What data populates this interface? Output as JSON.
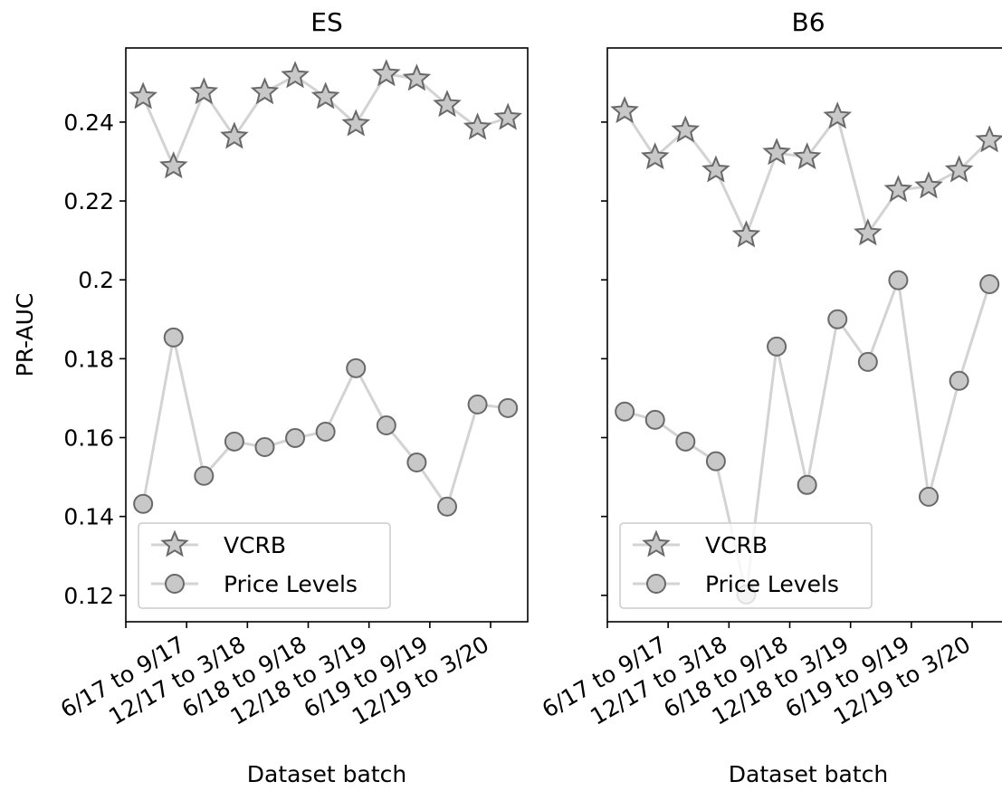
{
  "chart_data": [
    {
      "type": "line",
      "title": "ES",
      "ylabel": "PR-AUC",
      "xlabel": "Dataset batch",
      "x": [
        0,
        1,
        2,
        3,
        4,
        5,
        6,
        7,
        8,
        9,
        10,
        11,
        12
      ],
      "xlim": [
        -0.57,
        12.65
      ],
      "xticks": [
        {
          "value": -0.57,
          "label": null
        },
        {
          "value": 1.43,
          "label": "6/17 to 9/17"
        },
        {
          "value": 3.43,
          "label": "12/17 to 3/18"
        },
        {
          "value": 5.43,
          "label": "6/18 to 9/18"
        },
        {
          "value": 7.43,
          "label": "12/18 to 3/19"
        },
        {
          "value": 9.43,
          "label": "6/19 to 9/19"
        },
        {
          "value": 11.43,
          "label": "12/19 to 3/20"
        }
      ],
      "ylim": [
        0.1133,
        0.2588
      ],
      "yticks": [
        0.12,
        0.14,
        0.16,
        0.18,
        0.2,
        0.22,
        0.24
      ],
      "show_ytick_labels": true,
      "legend": "lower left",
      "series": [
        {
          "name": "VCRB",
          "marker": "star",
          "color": "#d3d3d3",
          "marker_fill": "#c8c8c8",
          "marker_edge": "#696969",
          "values": [
            0.2464,
            0.2288,
            0.2476,
            0.2363,
            0.2476,
            0.2517,
            0.2464,
            0.2395,
            0.2522,
            0.251,
            0.2444,
            0.2386,
            0.2411
          ]
        },
        {
          "name": "Price Levels",
          "marker": "circle",
          "color": "#d3d3d3",
          "marker_fill": "#c8c8c8",
          "marker_edge": "#696969",
          "values": [
            0.1432,
            0.1854,
            0.1503,
            0.159,
            0.1576,
            0.1599,
            0.1615,
            0.1776,
            0.1631,
            0.1537,
            0.1425,
            0.1684,
            0.1675
          ]
        }
      ]
    },
    {
      "type": "line",
      "title": "B6",
      "xlabel": "Dataset batch",
      "x": [
        0,
        1,
        2,
        3,
        4,
        5,
        6,
        7,
        8,
        9,
        10,
        11,
        12
      ],
      "xlim": [
        -0.57,
        12.65
      ],
      "xticks": [
        {
          "value": -0.57,
          "label": null
        },
        {
          "value": 1.43,
          "label": "6/17 to 9/17"
        },
        {
          "value": 3.43,
          "label": "12/17 to 3/18"
        },
        {
          "value": 5.43,
          "label": "6/18 to 9/18"
        },
        {
          "value": 7.43,
          "label": "12/18 to 3/19"
        },
        {
          "value": 9.43,
          "label": "6/19 to 9/19"
        },
        {
          "value": 11.43,
          "label": "12/19 to 3/20"
        }
      ],
      "ylim": [
        0.1133,
        0.2588
      ],
      "yticks": [
        0.12,
        0.14,
        0.16,
        0.18,
        0.2,
        0.22,
        0.24
      ],
      "show_ytick_labels": false,
      "legend": "lower left",
      "series": [
        {
          "name": "VCRB",
          "marker": "star",
          "color": "#d3d3d3",
          "marker_fill": "#c8c8c8",
          "marker_edge": "#696969",
          "values": [
            0.2428,
            0.2311,
            0.2379,
            0.2278,
            0.2113,
            0.2322,
            0.2311,
            0.2414,
            0.2118,
            0.2228,
            0.2237,
            0.2278,
            0.2354
          ]
        },
        {
          "name": "Price Levels",
          "marker": "circle",
          "color": "#d3d3d3",
          "marker_fill": "#c8c8c8",
          "marker_edge": "#696969",
          "values": [
            0.1666,
            0.1645,
            0.159,
            0.154,
            0.1202,
            0.1831,
            0.148,
            0.19,
            0.1792,
            0.1999,
            0.145,
            0.1744,
            0.1989
          ]
        }
      ]
    }
  ]
}
